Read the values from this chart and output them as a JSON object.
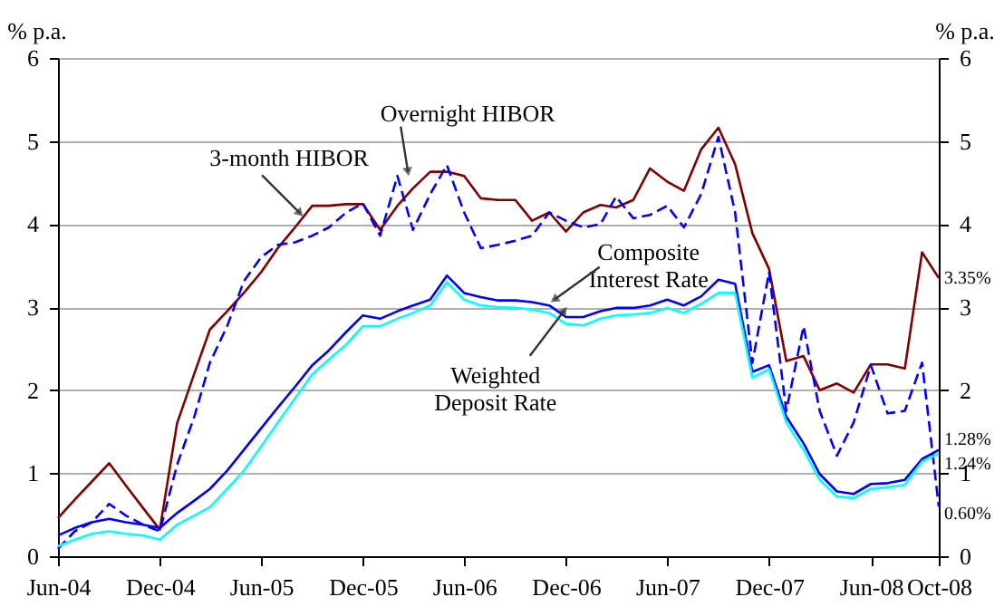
{
  "chart_data": {
    "type": "line",
    "ylabel": "% p.a.",
    "y2label": "% p.a.",
    "x": [
      "2004-06",
      "2004-07",
      "2004-08",
      "2004-09",
      "2004-10",
      "2004-11",
      "2004-12",
      "2005-01",
      "2005-02",
      "2005-03",
      "2005-04",
      "2005-05",
      "2005-06",
      "2005-07",
      "2005-08",
      "2005-09",
      "2005-10",
      "2005-11",
      "2005-12",
      "2006-01",
      "2006-02",
      "2006-03",
      "2006-04",
      "2006-05",
      "2006-06",
      "2006-07",
      "2006-08",
      "2006-09",
      "2006-10",
      "2006-11",
      "2006-12",
      "2007-01",
      "2007-02",
      "2007-03",
      "2007-04",
      "2007-05",
      "2007-06",
      "2007-07",
      "2007-08",
      "2007-09",
      "2007-10",
      "2007-11",
      "2007-12",
      "2008-01",
      "2008-02",
      "2008-03",
      "2008-04",
      "2008-05",
      "2008-06",
      "2008-07",
      "2008-08",
      "2008-09",
      "2008-10"
    ],
    "series": [
      {
        "color": "#800000",
        "line_style": "solid",
        "values": [
          0.46,
          0.68,
          0.9,
          1.12,
          0.85,
          0.58,
          0.32,
          1.6,
          2.2,
          2.73,
          2.95,
          3.17,
          3.42,
          3.71,
          3.96,
          4.22,
          4.22,
          4.24,
          4.24,
          3.93,
          4.22,
          4.43,
          4.63,
          4.63,
          4.58,
          4.31,
          4.29,
          4.29,
          4.04,
          4.14,
          3.91,
          4.14,
          4.23,
          4.2,
          4.29,
          4.67,
          4.51,
          4.4,
          4.9,
          5.16,
          4.72,
          3.89,
          3.46,
          2.35,
          2.41,
          2.0,
          2.08,
          1.97,
          2.31,
          2.31,
          2.26,
          3.66,
          3.35
        ],
        "value_labels": [
          null,
          null,
          null,
          null,
          null,
          null,
          null,
          null,
          null,
          null,
          null,
          null,
          null,
          null,
          null,
          null,
          null,
          null,
          null,
          null,
          null,
          null,
          null,
          null,
          null,
          null,
          null,
          null,
          null,
          null,
          null,
          null,
          null,
          null,
          null,
          null,
          null,
          null,
          null,
          null,
          null,
          null,
          null,
          null,
          null,
          null,
          null,
          null,
          null,
          null,
          null,
          null,
          "3.35%"
        ]
      },
      {
        "color": "#0000ff",
        "line_style": "dashed",
        "values": [
          0.09,
          0.3,
          0.41,
          0.63,
          0.49,
          0.38,
          0.3,
          1.1,
          1.68,
          2.33,
          2.77,
          3.31,
          3.6,
          3.75,
          3.78,
          3.86,
          3.96,
          4.14,
          4.25,
          3.86,
          4.58,
          3.93,
          4.36,
          4.71,
          4.14,
          3.71,
          3.75,
          3.8,
          3.86,
          4.14,
          4.04,
          3.96,
          4.0,
          4.33,
          4.07,
          4.11,
          4.22,
          3.96,
          4.36,
          5.05,
          4.14,
          2.33,
          3.42,
          1.75,
          2.77,
          1.75,
          1.21,
          1.61,
          2.3,
          1.72,
          1.75,
          2.33,
          0.6
        ],
        "value_labels": [
          null,
          null,
          null,
          null,
          null,
          null,
          null,
          null,
          null,
          null,
          null,
          null,
          null,
          null,
          null,
          null,
          null,
          null,
          null,
          null,
          null,
          null,
          null,
          null,
          null,
          null,
          null,
          null,
          null,
          null,
          null,
          null,
          null,
          null,
          null,
          null,
          null,
          null,
          null,
          null,
          null,
          null,
          null,
          null,
          null,
          null,
          null,
          null,
          null,
          null,
          null,
          null,
          "0.60%"
        ]
      },
      {
        "color": "#0000ff",
        "line_style": "solid",
        "values": [
          0.25,
          0.34,
          0.41,
          0.45,
          0.41,
          0.38,
          0.34,
          0.52,
          0.67,
          0.81,
          1.03,
          1.28,
          1.54,
          1.79,
          2.04,
          2.3,
          2.48,
          2.7,
          2.9,
          2.86,
          2.95,
          3.02,
          3.09,
          3.38,
          3.17,
          3.12,
          3.08,
          3.08,
          3.06,
          3.02,
          2.88,
          2.88,
          2.95,
          2.99,
          2.99,
          3.02,
          3.09,
          3.02,
          3.13,
          3.33,
          3.28,
          2.22,
          2.3,
          1.68,
          1.36,
          0.99,
          0.78,
          0.75,
          0.87,
          0.88,
          0.92,
          1.17,
          1.28
        ],
        "value_labels": [
          null,
          null,
          null,
          null,
          null,
          null,
          null,
          null,
          null,
          null,
          null,
          null,
          null,
          null,
          null,
          null,
          null,
          null,
          null,
          null,
          null,
          null,
          null,
          null,
          null,
          null,
          null,
          null,
          null,
          null,
          null,
          null,
          null,
          null,
          null,
          null,
          null,
          null,
          null,
          null,
          null,
          null,
          null,
          null,
          null,
          null,
          null,
          null,
          null,
          null,
          null,
          null,
          "1.28%"
        ]
      },
      {
        "color": "#00ffff",
        "line_style": "solid",
        "values": [
          0.12,
          0.2,
          0.27,
          0.3,
          0.27,
          0.25,
          0.2,
          0.38,
          0.49,
          0.59,
          0.81,
          1.03,
          1.32,
          1.61,
          1.9,
          2.19,
          2.37,
          2.55,
          2.77,
          2.77,
          2.86,
          2.93,
          3.02,
          3.3,
          3.09,
          3.02,
          3.0,
          2.99,
          2.97,
          2.93,
          2.8,
          2.78,
          2.86,
          2.9,
          2.91,
          2.93,
          2.99,
          2.93,
          3.04,
          3.17,
          3.17,
          2.15,
          2.25,
          1.61,
          1.28,
          0.92,
          0.72,
          0.7,
          0.81,
          0.83,
          0.86,
          1.14,
          1.24
        ],
        "value_labels": [
          null,
          null,
          null,
          null,
          null,
          null,
          null,
          null,
          null,
          null,
          null,
          null,
          null,
          null,
          null,
          null,
          null,
          null,
          null,
          null,
          null,
          null,
          null,
          null,
          null,
          null,
          null,
          null,
          null,
          null,
          null,
          null,
          null,
          null,
          null,
          null,
          null,
          null,
          null,
          null,
          null,
          null,
          null,
          null,
          null,
          null,
          null,
          null,
          null,
          null,
          null,
          null,
          "1.24%"
        ]
      }
    ],
    "annotations": [
      {
        "text": "Overnight HIBOR",
        "x": "2006-02-20",
        "y": 4.63
      },
      {
        "text": "3-month HIBOR",
        "x": "2005-08-10",
        "y": 4.13
      },
      {
        "text": "Composite\nInterest Rate",
        "x": "2006-11-10",
        "y": 3.09
      },
      {
        "text": "Weighted\nDeposit Rate",
        "x": "2006-11-28",
        "y": 2.96
      }
    ],
    "xlim": [
      "2004-06",
      "2008-10"
    ],
    "xticks": [
      {
        "value": "2004-06",
        "label": "Jun-04"
      },
      {
        "value": "2004-12",
        "label": "Dec-04"
      },
      {
        "value": "2005-06",
        "label": "Jun-05"
      },
      {
        "value": "2005-12",
        "label": "Dec-05"
      },
      {
        "value": "2006-06",
        "label": "Jun-06"
      },
      {
        "value": "2006-12",
        "label": "Dec-06"
      },
      {
        "value": "2007-06",
        "label": "Jun-07"
      },
      {
        "value": "2007-12",
        "label": "Dec-07"
      },
      {
        "value": "2008-06",
        "label": "Jun-08"
      },
      {
        "value": "2008-10",
        "label": "Oct-08"
      }
    ],
    "ylim": [
      0,
      6
    ],
    "yticks": [
      0,
      1,
      2,
      3,
      4,
      5,
      6
    ],
    "y2lim": [
      0,
      6
    ],
    "y2ticks": [
      0,
      1,
      2,
      3,
      4,
      5,
      6
    ],
    "grid": "y",
    "legend": false,
    "marker": "none"
  }
}
